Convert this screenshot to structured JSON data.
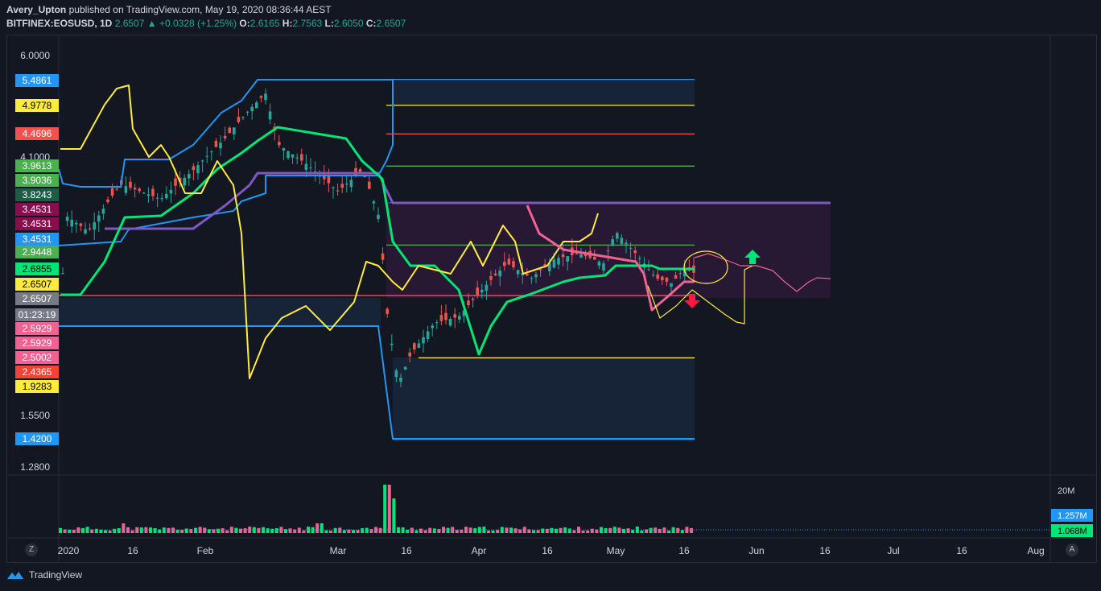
{
  "header": {
    "author": "Avery_Upton",
    "published_text": "published on TradingView.com, May 19, 2020 08:36:44 AEST",
    "symbol": "BITFINEX:EOSUSD, 1D",
    "last": "2.6507",
    "change": "+0.0328 (+1.25%)",
    "o_label": "O:",
    "o": "2.6165",
    "h_label": "H:",
    "h": "2.7563",
    "l_label": "L:",
    "l": "2.6050",
    "c_label": "C:",
    "c": "2.6507"
  },
  "footer": {
    "brand": "TradingView"
  },
  "buttons": {
    "z": "Z",
    "a": "A"
  },
  "colors": {
    "background": "#131722",
    "grid": "#2a2e39",
    "green_line": "#00e676",
    "yellow_line": "#ffeb3b",
    "pink_line": "#f06292",
    "blue_line": "#2196f3",
    "purple_line": "#7e57c2",
    "red_line": "#ef5350",
    "cloud_fill": "#2a1a36",
    "range_fill": "#172337"
  },
  "chart_data": {
    "type": "candlestick",
    "symbol": "BITFINEX:EOSUSD",
    "interval": "1D",
    "y_scale": "log",
    "y_ticks": [
      "6.0000",
      "4.1000",
      "1.5500",
      "1.2800"
    ],
    "x_ticks": [
      "2020",
      "16",
      "Feb",
      "Mar",
      "16",
      "Apr",
      "16",
      "May",
      "16",
      "Jun",
      "16",
      "Jul",
      "16",
      "Aug"
    ],
    "price_labels": [
      {
        "text": "5.4861",
        "bg": "#2196f3",
        "fg": "#ffffff"
      },
      {
        "text": "4.9778",
        "bg": "#ffeb3b",
        "fg": "#000000"
      },
      {
        "text": "4.4696",
        "bg": "#ef5350",
        "fg": "#ffffff"
      },
      {
        "text": "3.9613",
        "bg": "#4caf50",
        "fg": "#ffffff"
      },
      {
        "text": "3.9036",
        "bg": "#4caf50",
        "fg": "#ffffff"
      },
      {
        "text": "3.8243",
        "bg": "#1b5e45",
        "fg": "#ffffff"
      },
      {
        "text": "3.4531",
        "bg": "#880e4f",
        "fg": "#ffffff"
      },
      {
        "text": "3.4531",
        "bg": "#880e4f",
        "fg": "#ffffff"
      },
      {
        "text": "3.4531",
        "bg": "#2196f3",
        "fg": "#ffffff"
      },
      {
        "text": "2.9448",
        "bg": "#4caf50",
        "fg": "#ffffff"
      },
      {
        "text": "2.6855",
        "bg": "#00e676",
        "fg": "#000000"
      },
      {
        "text": "2.6507",
        "bg": "#ffeb3b",
        "fg": "#000000"
      },
      {
        "text": "2.6507",
        "bg": "#787b86",
        "fg": "#ffffff"
      },
      {
        "text": "01:23:19",
        "bg": "#787b86",
        "fg": "#ffffff"
      },
      {
        "text": "2.5929",
        "bg": "#f06292",
        "fg": "#ffffff"
      },
      {
        "text": "2.5929",
        "bg": "#f06292",
        "fg": "#ffffff"
      },
      {
        "text": "2.5002",
        "bg": "#f06292",
        "fg": "#ffffff"
      },
      {
        "text": "2.4365",
        "bg": "#f44336",
        "fg": "#ffffff"
      },
      {
        "text": "1.9283",
        "bg": "#ffeb3b",
        "fg": "#000000"
      },
      {
        "text": "1.4200",
        "bg": "#2196f3",
        "fg": "#ffffff"
      }
    ],
    "volume_labels": [
      {
        "text": "20M",
        "bg": "",
        "fg": "#d1d4dc"
      },
      {
        "text": "1.257M",
        "bg": "#2196f3",
        "fg": "#ffffff"
      },
      {
        "text": "1.068M",
        "bg": "#00e676",
        "fg": "#000000"
      }
    ],
    "levels": [
      {
        "price": 5.4861,
        "color": "#2196f3"
      },
      {
        "price": 4.9778,
        "color": "#ffeb3b"
      },
      {
        "price": 4.4696,
        "color": "#ef5350"
      },
      {
        "price": 3.9613,
        "color": "#4caf50"
      },
      {
        "price": 3.4531,
        "color": "#3f51b5"
      },
      {
        "price": 2.9448,
        "color": "#4caf50"
      },
      {
        "price": 2.4365,
        "color": "#ef5350"
      },
      {
        "price": 1.9283,
        "color": "#ffeb3b"
      },
      {
        "price": 1.42,
        "color": "#2196f3"
      }
    ]
  }
}
